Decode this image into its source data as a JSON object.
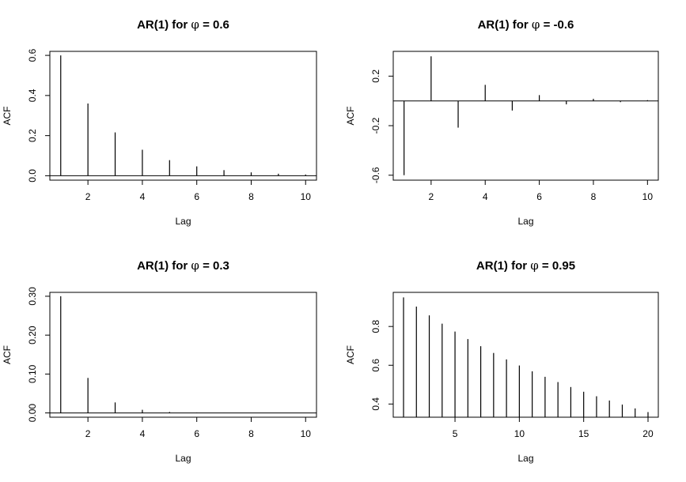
{
  "chart_data": [
    {
      "type": "bar",
      "title": "AR(1) for φ = 0.6",
      "title_prefix": "AR(1) for",
      "title_symbol": "φ",
      "title_value": "= 0.6",
      "xlabel": "Lag",
      "ylabel": "ACF",
      "x": [
        1,
        2,
        3,
        4,
        5,
        6,
        7,
        8,
        9,
        10
      ],
      "values": [
        0.6,
        0.36,
        0.216,
        0.1296,
        0.07776,
        0.046656,
        0.0279936,
        0.01679616,
        0.010077696,
        0.0060466176
      ],
      "xlim": [
        0.6,
        10.4
      ],
      "ylim": [
        -0.022,
        0.62
      ],
      "xticks": [
        2,
        4,
        6,
        8,
        10
      ],
      "yticks": [
        0.0,
        0.2,
        0.4,
        0.6
      ],
      "ytick_labels": [
        "0.0",
        "0.2",
        "0.4",
        "0.6"
      ]
    },
    {
      "type": "bar",
      "title": "AR(1) for φ = -0.6",
      "title_prefix": "AR(1) for",
      "title_symbol": "φ",
      "title_value": "= -0.6",
      "xlabel": "Lag",
      "ylabel": "ACF",
      "x": [
        1,
        2,
        3,
        4,
        5,
        6,
        7,
        8,
        9,
        10
      ],
      "values": [
        -0.6,
        0.36,
        -0.216,
        0.1296,
        -0.07776,
        0.046656,
        -0.0279936,
        0.01679616,
        -0.010077696,
        0.0060466176
      ],
      "xlim": [
        0.6,
        10.4
      ],
      "ylim": [
        -0.64,
        0.4
      ],
      "xticks": [
        2,
        4,
        6,
        8,
        10
      ],
      "yticks": [
        -0.6,
        -0.2,
        0.2
      ],
      "ytick_labels": [
        "-0.6",
        "-0.2",
        "0.2"
      ]
    },
    {
      "type": "bar",
      "title": "AR(1) for φ = 0.3",
      "title_prefix": "AR(1) for",
      "title_symbol": "φ",
      "title_value": "= 0.3",
      "xlabel": "Lag",
      "ylabel": "ACF",
      "x": [
        1,
        2,
        3,
        4,
        5,
        6,
        7,
        8,
        9,
        10
      ],
      "values": [
        0.3,
        0.09,
        0.027,
        0.0081,
        0.00243,
        0.000729,
        0.0002187,
        6.561e-05,
        1.9683e-05,
        5.9049e-06
      ],
      "xlim": [
        0.6,
        10.4
      ],
      "ylim": [
        -0.011,
        0.31
      ],
      "xticks": [
        2,
        4,
        6,
        8,
        10
      ],
      "yticks": [
        0.0,
        0.1,
        0.2,
        0.3
      ],
      "ytick_labels": [
        "0.00",
        "0.10",
        "0.20",
        "0.30"
      ]
    },
    {
      "type": "bar",
      "title": "AR(1) for φ = 0.95",
      "title_prefix": "AR(1) for",
      "title_symbol": "φ",
      "title_value": "= 0.95",
      "xlabel": "Lag",
      "ylabel": "ACF",
      "x": [
        1,
        2,
        3,
        4,
        5,
        6,
        7,
        8,
        9,
        10,
        11,
        12,
        13,
        14,
        15,
        16,
        17,
        18,
        19,
        20
      ],
      "values": [
        0.95,
        0.9025,
        0.857375,
        0.8145,
        0.7738,
        0.7351,
        0.6983,
        0.6634,
        0.6302,
        0.5987,
        0.5688,
        0.5404,
        0.5133,
        0.4877,
        0.4633,
        0.4401,
        0.4181,
        0.3972,
        0.3774,
        0.3585
      ],
      "xlim": [
        0.2,
        20.8
      ],
      "ylim": [
        0.332,
        0.976
      ],
      "xticks": [
        5,
        10,
        15,
        20
      ],
      "yticks": [
        0.4,
        0.6,
        0.8
      ],
      "ytick_labels": [
        "0.4",
        "0.6",
        "0.8"
      ]
    }
  ]
}
